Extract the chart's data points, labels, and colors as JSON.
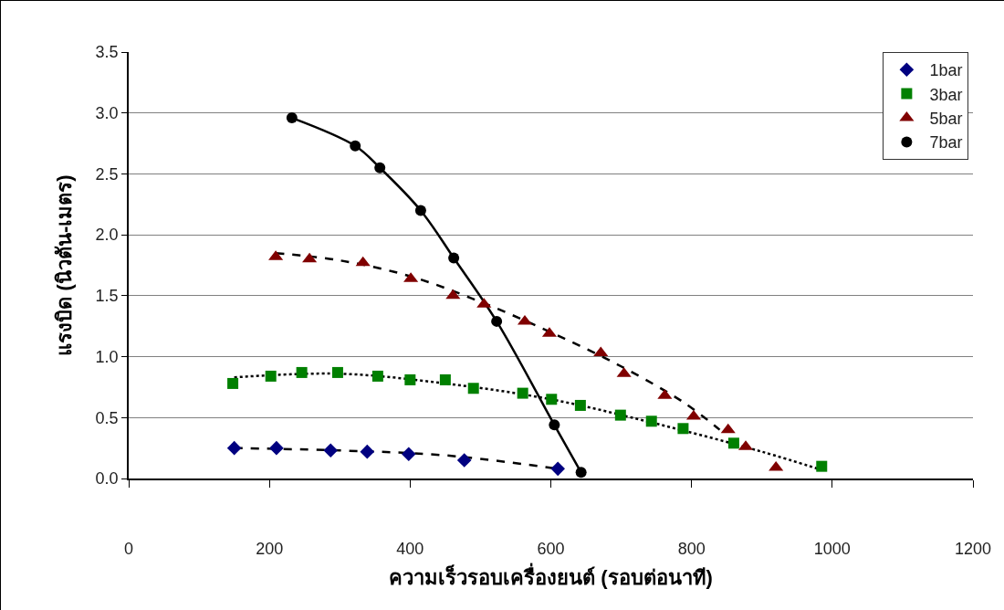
{
  "chart_data": {
    "type": "scatter",
    "xlabel": "ความเร็วรอบเครื่องยนต์ (รอบต่อนาที)",
    "ylabel": "แรงบิด (นิวตัน-เมตร)",
    "xlim": [
      0,
      1200
    ],
    "xticks": [
      0,
      200,
      400,
      600,
      800,
      1000,
      1200
    ],
    "ylim": [
      0,
      3.5
    ],
    "yticks": [
      {
        "value": 0,
        "label": "0.0"
      },
      {
        "value": 0.5,
        "label": "0.5"
      },
      {
        "value": 1,
        "label": "1.0"
      },
      {
        "value": 1.5,
        "label": "1.5"
      },
      {
        "value": 2,
        "label": "2.0"
      },
      {
        "value": 2.5,
        "label": "2.5"
      },
      {
        "value": 3,
        "label": "3.0"
      },
      {
        "value": 3.5,
        "label": "3.5"
      }
    ],
    "grid": "y",
    "legend": "top right",
    "series": [
      {
        "name": "1bar",
        "color": "#000080",
        "marker": "diamond",
        "x": [
          150,
          210,
          287,
          339,
          398,
          477,
          610
        ],
        "values": [
          0.25,
          0.25,
          0.23,
          0.22,
          0.2,
          0.15,
          0.08
        ]
      },
      {
        "name": "3bar",
        "color": "#008000",
        "marker": "square",
        "x": [
          148,
          202,
          246,
          297,
          354,
          400,
          450,
          490,
          560,
          601,
          642,
          699,
          743,
          788,
          860,
          985
        ],
        "values": [
          0.78,
          0.84,
          0.87,
          0.87,
          0.84,
          0.81,
          0.81,
          0.74,
          0.7,
          0.65,
          0.6,
          0.52,
          0.47,
          0.41,
          0.29,
          0.1
        ]
      },
      {
        "name": "5bar",
        "color": "#800000",
        "marker": "triangle",
        "x": [
          209,
          257,
          333,
          401,
          461,
          505,
          563,
          598,
          671,
          704,
          762,
          803,
          852,
          877,
          920
        ],
        "values": [
          1.82,
          1.8,
          1.77,
          1.64,
          1.5,
          1.43,
          1.29,
          1.19,
          1.03,
          0.86,
          0.68,
          0.51,
          0.4,
          0.26,
          0.09
        ]
      },
      {
        "name": "7bar",
        "color": "#000000",
        "marker": "circle",
        "x": [
          232,
          322,
          357,
          415,
          462,
          523,
          605,
          643
        ],
        "values": [
          2.96,
          2.73,
          2.55,
          2.2,
          1.81,
          1.29,
          0.44,
          0.05
        ]
      },
      {
        "type": "line",
        "color": "#000000",
        "line_style": "dashed",
        "x": [
          150,
          300,
          450,
          610
        ],
        "values": [
          0.25,
          0.23,
          0.19,
          0.08
        ]
      },
      {
        "type": "line",
        "color": "#000000",
        "line_style": "dotted",
        "x": [
          150,
          300,
          450,
          600,
          750,
          900,
          985
        ],
        "values": [
          0.83,
          0.86,
          0.78,
          0.65,
          0.45,
          0.22,
          0.07
        ]
      },
      {
        "type": "line",
        "color": "#000000",
        "line_style": "dashed",
        "x": [
          209,
          300,
          400,
          500,
          600,
          700,
          790,
          840
        ],
        "values": [
          1.85,
          1.79,
          1.66,
          1.45,
          1.2,
          0.92,
          0.62,
          0.4
        ]
      },
      {
        "type": "line",
        "color": "#000000",
        "line_style": "solid",
        "x": [
          232,
          322,
          357,
          415,
          462,
          523,
          605,
          643
        ],
        "values": [
          2.96,
          2.73,
          2.55,
          2.2,
          1.81,
          1.29,
          0.44,
          0.05
        ]
      }
    ]
  }
}
